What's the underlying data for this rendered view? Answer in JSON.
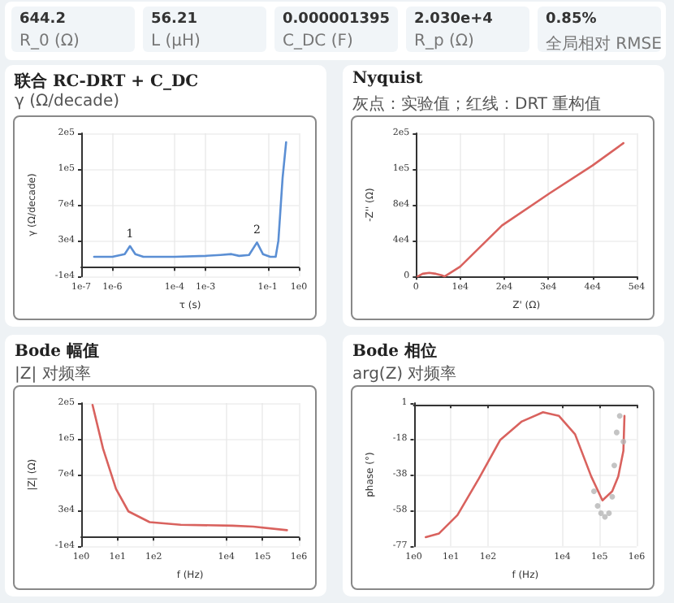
{
  "chart_data": [
    {
      "type": "other",
      "annotations": [
        "644.2",
        "R_0 (Ω)",
        "56.21",
        "L (μH)",
        "0.000001395",
        "C_DC (F)",
        "2.030e+4",
        "R_p (Ω)",
        "0.85%",
        "全局相对 RMSE"
      ]
    },
    {
      "type": "line",
      "title": "联合 RC-DRT + C_DC",
      "subtitle": "γ (Ω/decade)",
      "xlabel": "τ (s)",
      "ylabel": "γ (Ω/decade)",
      "log": "x",
      "grid": true,
      "xlim": [
        1e-07,
        1
      ],
      "xticks": [
        {
          "value": 1e-07,
          "label": "1e-7"
        },
        {
          "value": 1e-06,
          "label": "1e-6"
        },
        {
          "value": 0.0001,
          "label": "1e-4"
        },
        {
          "value": 0.001,
          "label": "1e-3"
        },
        {
          "value": 0.1,
          "label": "1e-1"
        },
        {
          "value": 1,
          "label": "1e0"
        }
      ],
      "ylim": [
        -10000,
        150000
      ],
      "yticks": [
        {
          "value": -10000,
          "label": "-1e4"
        },
        {
          "value": 30000,
          "label": "3e4"
        },
        {
          "value": 70000,
          "label": "7e4"
        },
        {
          "value": 110000,
          "label": "1e5"
        },
        {
          "value": 150000,
          "label": "2e5"
        }
      ],
      "annotations": [
        {
          "text": "1",
          "x": 3.7e-06,
          "y": 23500
        },
        {
          "text": "2",
          "x": 0.045,
          "y": 28000
        }
      ],
      "series": [
        {
          "color": "#5b8fd4",
          "x": [
            2.6e-07,
            1e-06,
            2.5e-06,
            3.7e-06,
            5.5e-06,
            1e-05,
            0.0001,
            0.001,
            0.003,
            0.0068,
            0.012,
            0.025,
            0.045,
            0.07,
            0.12,
            0.18,
            0.22,
            0.3,
            0.39
          ],
          "values": [
            12000,
            12000,
            15000,
            24000,
            15000,
            12000,
            12000,
            13000,
            14000,
            15000,
            13000,
            14000,
            28000,
            15000,
            12000,
            12000,
            30000,
            100000,
            140000
          ]
        }
      ]
    },
    {
      "type": "line",
      "title": "Nyquist",
      "subtitle": "灰点：实验值；红线：DRT 重构值",
      "xlabel": "Z' (Ω)",
      "ylabel": "-Z'' (Ω)",
      "grid": true,
      "xlim": [
        0,
        50000
      ],
      "xticks": [
        {
          "value": 0,
          "label": "0"
        },
        {
          "value": 10000,
          "label": "1e4"
        },
        {
          "value": 20000,
          "label": "2e4"
        },
        {
          "value": 30000,
          "label": "3e4"
        },
        {
          "value": 40000,
          "label": "4e4"
        },
        {
          "value": 50000,
          "label": "5e4"
        }
      ],
      "ylim": [
        0,
        160000
      ],
      "yticks": [
        {
          "value": 0,
          "label": "0"
        },
        {
          "value": 40000,
          "label": "4e4"
        },
        {
          "value": 80000,
          "label": "8e4"
        },
        {
          "value": 120000,
          "label": "1e5"
        },
        {
          "value": 160000,
          "label": "2e5"
        }
      ],
      "series": [
        {
          "color": "#d9625e",
          "x": [
            400,
            1500,
            3000,
            4500,
            6000,
            6500,
            10000,
            19500,
            30300,
            40000,
            47000
          ],
          "values": [
            0,
            3000,
            4000,
            3000,
            1000,
            0,
            11000,
            57000,
            93000,
            124000,
            149000
          ]
        }
      ]
    },
    {
      "type": "line",
      "title": "Bode 幅值",
      "subtitle": "|Z| 对频率",
      "xlabel": "f (Hz)",
      "ylabel": "|Z| (Ω)",
      "log": "x",
      "grid": true,
      "xlim": [
        1,
        1000000
      ],
      "xticks": [
        {
          "value": 1,
          "label": "1e0"
        },
        {
          "value": 10,
          "label": "1e1"
        },
        {
          "value": 100,
          "label": "1e2"
        },
        {
          "value": 10000,
          "label": "1e4"
        },
        {
          "value": 100000,
          "label": "1e5"
        },
        {
          "value": 1000000,
          "label": "1e6"
        }
      ],
      "ylim": [
        -10000,
        150000
      ],
      "yticks": [
        {
          "value": -10000,
          "label": "-1e4"
        },
        {
          "value": 30000,
          "label": "3e4"
        },
        {
          "value": 70000,
          "label": "7e4"
        },
        {
          "value": 110000,
          "label": "1e5"
        },
        {
          "value": 150000,
          "label": "2e5"
        }
      ],
      "series": [
        {
          "color": "#d9625e",
          "x": [
            2.05,
            4,
            9.1,
            20,
            77,
            554,
            15000,
            55000,
            470000
          ],
          "values": [
            148000,
            99000,
            54000,
            29000,
            17000,
            14000,
            13000,
            12000,
            8000
          ]
        }
      ]
    },
    {
      "type": "line",
      "title": "Bode 相位",
      "subtitle": "arg(Z) 对频率",
      "xlabel": "f (Hz)",
      "ylabel": "phase (°)",
      "log": "x",
      "grid": true,
      "xlim": [
        1,
        1000000
      ],
      "xticks": [
        {
          "value": 1,
          "label": "1e0"
        },
        {
          "value": 10,
          "label": "1e1"
        },
        {
          "value": 100,
          "label": "1e2"
        },
        {
          "value": 10000,
          "label": "1e4"
        },
        {
          "value": 100000,
          "label": "1e5"
        },
        {
          "value": 1000000,
          "label": "1e6"
        }
      ],
      "ylim": [
        -77,
        1
      ],
      "yticks": [
        {
          "value": -77,
          "label": "-77"
        },
        {
          "value": -57.5,
          "label": "-58"
        },
        {
          "value": -38,
          "label": "-38"
        },
        {
          "value": -18.5,
          "label": "-18"
        },
        {
          "value": 1,
          "label": "1"
        }
      ],
      "series": [
        {
          "color": "#d9625e",
          "x": [
            2.1,
            4.8,
            15,
            57,
            214,
            813,
            3020,
            8130,
            22000,
            60000,
            120000,
            220000,
            320000,
            440000,
            470000
          ],
          "values": [
            -72,
            -70,
            -60,
            -40,
            -19,
            -9,
            -4,
            -6,
            -16,
            -39,
            -52,
            -47,
            -39,
            -25,
            -6
          ]
        },
        {
          "type": "scatter",
          "color": "#b5b5b5",
          "x": [
            71000,
            89000,
            110000,
            140000,
            180000,
            220000,
            250000,
            290000,
            350000,
            440000
          ],
          "values": [
            -47,
            -55,
            -59,
            -61,
            -59,
            -50,
            -33,
            -15,
            -6,
            -20
          ]
        }
      ]
    }
  ]
}
